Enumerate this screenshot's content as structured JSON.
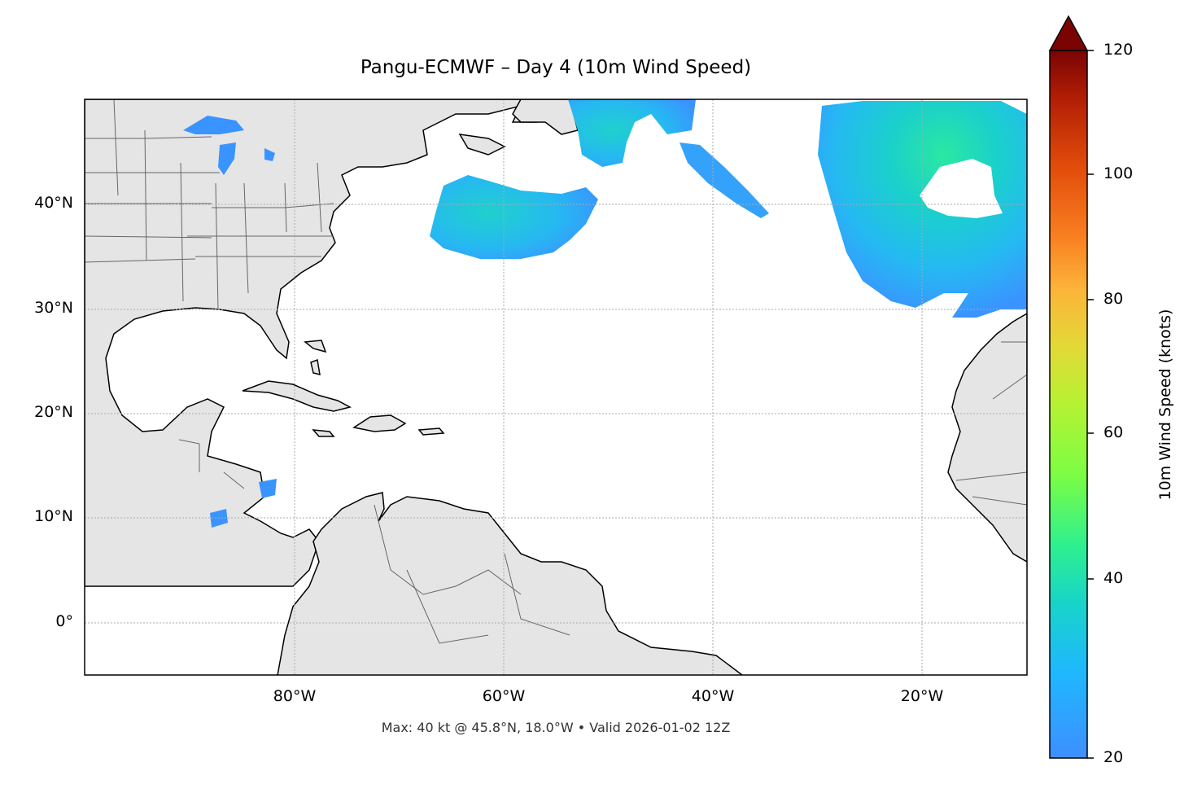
{
  "title": "Pangu-ECMWF – Day 4 (10m Wind Speed)",
  "footer": "Max: 40 kt @ 45.8°N, 18.0°W • Valid 2026-01-02 12Z",
  "map": {
    "lat_ticks": [
      "40°N",
      "30°N",
      "20°N",
      "10°N",
      "0°"
    ],
    "lon_ticks": [
      "80°W",
      "60°W",
      "40°W",
      "20°W"
    ],
    "lat_range": [
      -5,
      50
    ],
    "lon_range": [
      -100,
      -10
    ],
    "land_color": "#e5e5e5",
    "ocean_color": "#ffffff",
    "gridlines": true
  },
  "colorbar": {
    "label": "10m Wind Speed (knots)",
    "ticks": [
      "120",
      "100",
      "80",
      "60",
      "40",
      "20"
    ],
    "min": 20,
    "max": 120,
    "extend": "max",
    "colormap": "turbo"
  }
}
